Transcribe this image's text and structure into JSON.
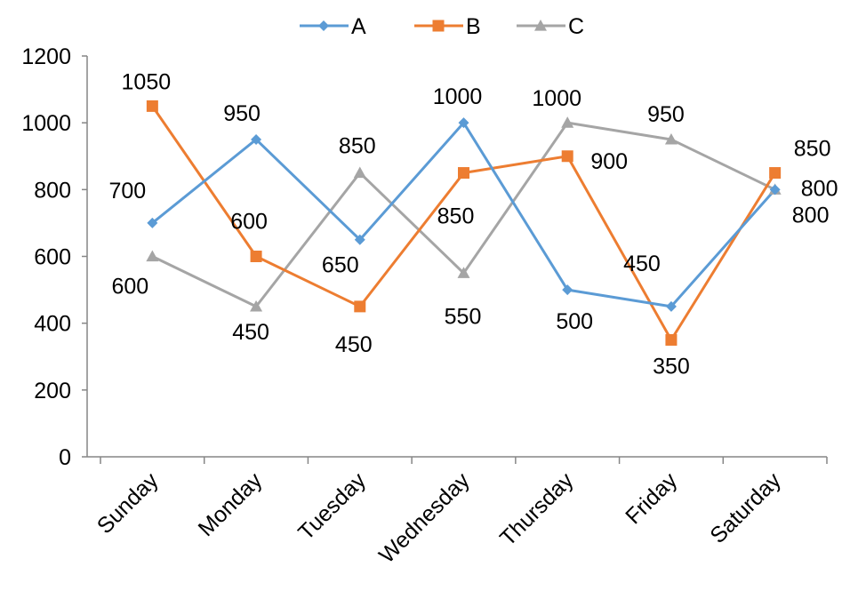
{
  "chart_data": {
    "type": "line",
    "categories": [
      "Sunday",
      "Monday",
      "Tuesday",
      "Wednesday",
      "Thursday",
      "Friday",
      "Saturday"
    ],
    "series": [
      {
        "name": "A",
        "values": [
          700,
          950,
          650,
          1000,
          500,
          450,
          800
        ],
        "labels": [
          "700",
          "950",
          "650",
          "1000",
          "500",
          "450",
          "800"
        ],
        "color": "#5B9BD5",
        "marker": "diamond"
      },
      {
        "name": "B",
        "values": [
          1050,
          600,
          450,
          850,
          900,
          350,
          850
        ],
        "labels": [
          "1050",
          "600",
          "450",
          "850",
          "900",
          "350",
          "850"
        ],
        "color": "#ED7D31",
        "marker": "square"
      },
      {
        "name": "C",
        "values": [
          600,
          450,
          850,
          550,
          1000,
          950,
          800
        ],
        "labels": [
          "600",
          "450",
          "850",
          "550",
          "1000",
          "950",
          "800"
        ],
        "color": "#A5A5A5",
        "marker": "triangle"
      }
    ],
    "ylim": [
      0,
      1200
    ],
    "yticks": [
      "0",
      "200",
      "400",
      "600",
      "800",
      "1000",
      "1200"
    ],
    "grid": false,
    "legend_position": "top",
    "title": "",
    "xlabel": "",
    "ylabel": ""
  }
}
